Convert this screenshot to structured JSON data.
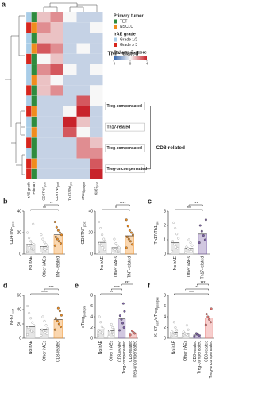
{
  "chart_data": [
    {
      "type": "heatmap",
      "panel": "a",
      "columns": [
        [
          {
            "text": "irAE grade"
          }
        ],
        [
          {
            "text": "Primary"
          }
        ],
        [
          {
            "text": "CD4TNF"
          },
          {
            "text": "post",
            "sub": true
          }
        ],
        [
          {
            "text": "CD8TNF"
          },
          {
            "text": "post",
            "sub": true
          }
        ],
        [
          {
            "text": "Th17/Th1"
          },
          {
            "text": "pre",
            "sub": true
          }
        ],
        [
          {
            "text": "eTreg"
          },
          {
            "text": "post/pre",
            "sub": true
          }
        ],
        [
          {
            "text": "Ki-67"
          },
          {
            "text": "post",
            "sub": true
          }
        ]
      ],
      "row_groups": [
        {
          "label": "TNF-related",
          "rows": [
            {
              "grade": "Grade 1/2",
              "primary": "TET",
              "z": [
                1,
                2,
                0,
                -1,
                -1
              ]
            },
            {
              "grade": "Grade ≥ 3",
              "primary": "NSCLC",
              "z": [
                2,
                1,
                -1,
                -1,
                0
              ]
            },
            {
              "grade": "Grade 1/2",
              "primary": "TET",
              "z": [
                1,
                1,
                -1,
                -1,
                -1
              ]
            },
            {
              "grade": "Grade 1/2",
              "primary": "NSCLC",
              "z": [
                3,
                2,
                -1,
                0,
                -1
              ]
            },
            {
              "grade": "Grade ≥ 3",
              "primary": "TET",
              "z": [
                0,
                1,
                -1,
                -1,
                -1
              ]
            },
            {
              "grade": "Grade 1/2",
              "primary": "TET",
              "z": [
                2,
                3,
                0,
                -1,
                0
              ]
            },
            {
              "grade": "Grade 1/2",
              "primary": "NSCLC",
              "z": [
                1,
                0,
                -1,
                -1,
                -1
              ]
            },
            {
              "grade": "Grade ≥ 3",
              "primary": "TET",
              "z": [
                1,
                2,
                -1,
                -1,
                0
              ]
            }
          ]
        },
        {
          "label": "Treg-compensated",
          "rows": [
            {
              "grade": "Grade 1/2",
              "primary": "TET",
              "z": [
                -1,
                -1,
                -1,
                3,
                0
              ]
            },
            {
              "grade": "Grade ≥ 3",
              "primary": "NSCLC",
              "z": [
                -1,
                -1,
                0,
                4,
                -1
              ]
            }
          ]
        },
        {
          "label": "Th17-related",
          "rows": [
            {
              "grade": "Grade 1/2",
              "primary": "TET",
              "z": [
                -1,
                -1,
                4,
                1,
                -1
              ]
            },
            {
              "grade": "Grade 1/2",
              "primary": "NSCLC",
              "z": [
                -1,
                -1,
                3,
                0,
                -1
              ]
            }
          ]
        },
        {
          "label": "Treg-compensated",
          "rows": [
            {
              "grade": "Grade ≥ 3",
              "primary": "TET",
              "z": [
                -1,
                -1,
                -1,
                2,
                1
              ]
            },
            {
              "grade": "Grade 1/2",
              "primary": "TET",
              "z": [
                -1,
                -1,
                -1,
                2,
                2
              ]
            }
          ]
        },
        {
          "label": "Treg-uncompensated",
          "rows": [
            {
              "grade": "Grade ≥ 3",
              "primary": "NSCLC",
              "z": [
                -1,
                -1,
                -1,
                -1,
                3
              ]
            },
            {
              "grade": "Grade ≥ 3",
              "primary": "TET",
              "z": [
                -1,
                -1,
                -1,
                -1,
                4
              ]
            }
          ]
        }
      ],
      "bracket": {
        "label": "CD8-related",
        "groups": [
          1,
          3,
          4
        ]
      },
      "legend": [
        {
          "title": "Primary tumor",
          "items": [
            {
              "name": "TET",
              "color": "#2e8b3e"
            },
            {
              "name": "NSCLC",
              "color": "#f08c1e"
            }
          ]
        },
        {
          "title": "irAE grade",
          "items": [
            {
              "name": "Grade 1/2",
              "color": "#a9cde8"
            },
            {
              "name": "Grade ≥ 3",
              "color": "#d7261e"
            }
          ]
        }
      ],
      "colorbar": {
        "title": "Column Z-score",
        "lim": [
          -4,
          4
        ],
        "ticks": [
          -4,
          0,
          4
        ],
        "colors": [
          "#2f62ad",
          "#f7f7f7",
          "#c8232b"
        ]
      }
    },
    {
      "type": "dotbar",
      "panel": "b",
      "ylabel": [
        {
          "text": "CD4TNF"
        },
        {
          "text": "post",
          "sub": true
        }
      ],
      "ylim": [
        0,
        40
      ],
      "yticks": [
        0,
        20,
        40
      ],
      "groups": [
        {
          "name": [
            "No irAE"
          ],
          "mean": 9,
          "points": [
            2,
            4,
            5,
            6,
            8,
            9,
            10,
            12,
            15,
            20,
            28
          ],
          "color": "#9a9a9a",
          "filled": false
        },
        {
          "name": [
            "Other irAEs"
          ],
          "mean": 7,
          "points": [
            1,
            3,
            4,
            5,
            6,
            7,
            9,
            11,
            14,
            18
          ],
          "color": "#9a9a9a",
          "filled": false
        },
        {
          "name": [
            "TNF-related"
          ],
          "mean": 18,
          "points": [
            8,
            10,
            12,
            14,
            16,
            18,
            20,
            22,
            25,
            30
          ],
          "color": "#f08c1e",
          "filled": true
        }
      ],
      "comparisons": [
        {
          "groups": [
            0,
            2
          ],
          "label": "**"
        },
        {
          "groups": [
            1,
            2
          ],
          "label": "**"
        }
      ]
    },
    {
      "type": "dotbar",
      "ylabel": [
        {
          "text": "CD8TNF"
        },
        {
          "text": "post",
          "sub": true
        }
      ],
      "ylim": [
        0,
        40
      ],
      "yticks": [
        0,
        20,
        40
      ],
      "groups": [
        {
          "name": [
            "No irAE"
          ],
          "mean": 11,
          "points": [
            2,
            4,
            6,
            8,
            10,
            12,
            14,
            18,
            24,
            30
          ],
          "color": "#9a9a9a",
          "filled": false
        },
        {
          "name": [
            "Other irAEs"
          ],
          "mean": 6,
          "points": [
            1,
            2,
            3,
            4,
            5,
            6,
            8,
            10,
            14
          ],
          "color": "#9a9a9a",
          "filled": false
        },
        {
          "name": [
            "TNF-related"
          ],
          "mean": 17,
          "points": [
            6,
            9,
            12,
            14,
            16,
            18,
            20,
            22,
            26,
            32
          ],
          "color": "#f08c1e",
          "filled": true
        }
      ],
      "comparisons": [
        {
          "groups": [
            0,
            2
          ],
          "label": "*"
        },
        {
          "groups": [
            1,
            2
          ],
          "label": "****"
        }
      ]
    },
    {
      "type": "dotbar",
      "panel": "c",
      "ylabel": [
        {
          "text": "Th17/Th1"
        },
        {
          "text": "pre",
          "sub": true
        }
      ],
      "ylim": [
        0,
        3
      ],
      "yticks": [
        0,
        1,
        2,
        3
      ],
      "groups": [
        {
          "name": [
            "No irAE"
          ],
          "mean": 0.8,
          "points": [
            0.2,
            0.4,
            0.5,
            0.7,
            0.9,
            1.1,
            1.4,
            1.8,
            2.2
          ],
          "color": "#9a9a9a",
          "filled": false
        },
        {
          "name": [
            "Other irAEs"
          ],
          "mean": 0.4,
          "points": [
            0.1,
            0.2,
            0.3,
            0.4,
            0.5,
            0.6,
            0.8,
            1.0
          ],
          "color": "#9a9a9a",
          "filled": false
        },
        {
          "name": [
            "Th17-related"
          ],
          "mean": 1.4,
          "points": [
            0.8,
            1.0,
            1.3,
            1.6,
            2.0,
            2.4
          ],
          "color": "#7b5ea7",
          "filled": true
        }
      ],
      "comparisons": [
        {
          "groups": [
            0,
            2
          ],
          "label": "***"
        },
        {
          "groups": [
            1,
            2
          ],
          "label": "***"
        }
      ]
    },
    {
      "type": "dotbar",
      "panel": "d",
      "ylabel": [
        {
          "text": "Ki-67"
        },
        {
          "text": "post",
          "sub": true
        }
      ],
      "ylim": [
        0,
        60
      ],
      "yticks": [
        0,
        20,
        40,
        60
      ],
      "groups": [
        {
          "name": [
            "No irAE"
          ],
          "mean": 16,
          "points": [
            5,
            8,
            10,
            12,
            15,
            18,
            22,
            28,
            35,
            45
          ],
          "color": "#9a9a9a",
          "filled": false
        },
        {
          "name": [
            "Other irAEs"
          ],
          "mean": 13,
          "points": [
            4,
            6,
            8,
            10,
            12,
            14,
            18,
            24,
            30
          ],
          "color": "#9a9a9a",
          "filled": false
        },
        {
          "name": [
            "CD8-related"
          ],
          "mean": 26,
          "points": [
            12,
            16,
            20,
            24,
            28,
            32,
            38,
            42
          ],
          "color": "#f08c1e",
          "filled": true
        }
      ],
      "comparisons": [
        {
          "groups": [
            0,
            2
          ],
          "label": "****"
        },
        {
          "groups": [
            1,
            2
          ],
          "label": "***"
        }
      ]
    },
    {
      "type": "dotbar",
      "panel": "e",
      "ylabel": [
        {
          "text": "eTreg"
        },
        {
          "text": "post/pre",
          "sub": true
        }
      ],
      "ylim": [
        0,
        8
      ],
      "yticks": [
        0,
        2,
        4,
        6,
        8
      ],
      "groups": [
        {
          "name": [
            "No irAE"
          ],
          "mean": 1.6,
          "points": [
            0.5,
            0.8,
            1.0,
            1.2,
            1.5,
            1.8,
            2.2,
            3,
            4
          ],
          "color": "#9a9a9a",
          "filled": false
        },
        {
          "name": [
            "Other irAEs"
          ],
          "mean": 1.4,
          "points": [
            0.4,
            0.7,
            1.0,
            1.2,
            1.4,
            1.7,
            2.0,
            2.6
          ],
          "color": "#9a9a9a",
          "filled": false
        },
        {
          "name": [
            "CD8-related",
            "Treg-compensated"
          ],
          "mean": 3.6,
          "points": [
            1.5,
            2,
            2.8,
            3.5,
            4.2,
            5,
            6.5
          ],
          "color": "#7b5ea7",
          "filled": true
        },
        {
          "name": [
            "CD8-related",
            "Treg-uncompensated"
          ],
          "mean": 1.0,
          "points": [
            0.6,
            0.9,
            1.1,
            1.4
          ],
          "color": "#e8736f",
          "filled": true
        }
      ],
      "comparisons": [
        {
          "groups": [
            0,
            2
          ],
          "label": "**"
        },
        {
          "groups": [
            1,
            2
          ],
          "label": "****"
        },
        {
          "groups": [
            2,
            3
          ],
          "label": "***"
        }
      ]
    },
    {
      "type": "dotbar",
      "panel": "f",
      "ylabel": [
        {
          "text": "Ki-67"
        },
        {
          "text": "post",
          "sub": true
        },
        {
          "text": "/eTreg"
        },
        {
          "text": "post/pre",
          "sub": true
        }
      ],
      "ylim": [
        0,
        8
      ],
      "yticks": [
        0,
        2,
        4,
        6,
        8
      ],
      "groups": [
        {
          "name": [
            "No irAE"
          ],
          "mean": 1.1,
          "points": [
            0.3,
            0.5,
            0.8,
            1,
            1.2,
            1.5,
            2,
            3
          ],
          "color": "#9a9a9a",
          "filled": false
        },
        {
          "name": [
            "Other irAEs"
          ],
          "mean": 0.9,
          "points": [
            0.3,
            0.5,
            0.7,
            0.9,
            1.2,
            1.6,
            2.4
          ],
          "color": "#9a9a9a",
          "filled": false
        },
        {
          "name": [
            "CD8-related",
            "Treg-compensated"
          ],
          "mean": 0.6,
          "points": [
            0.3,
            0.5,
            0.7,
            0.9
          ],
          "color": "#7b5ea7",
          "filled": true
        },
        {
          "name": [
            "CD8-related",
            "Treg-uncompensated"
          ],
          "mean": 3.8,
          "points": [
            2.5,
            3,
            3.5,
            4,
            4.5,
            5.5
          ],
          "color": "#e8736f",
          "filled": true
        }
      ],
      "comparisons": [
        {
          "groups": [
            0,
            3
          ],
          "label": "***"
        },
        {
          "groups": [
            1,
            3
          ],
          "label": "**"
        },
        {
          "groups": [
            2,
            3
          ],
          "label": "***"
        }
      ]
    }
  ]
}
